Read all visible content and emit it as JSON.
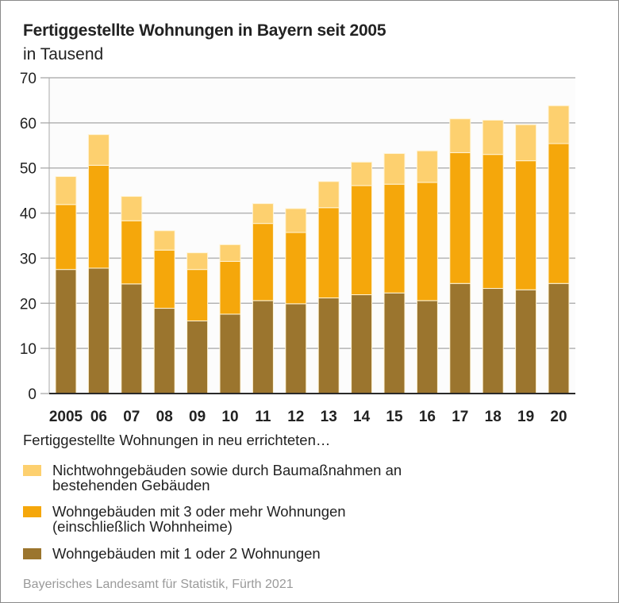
{
  "chart_data": {
    "type": "bar",
    "stacked": true,
    "title": "Fertiggestellte Wohnungen in Bayern seit 2005",
    "subtitle": "in Tausend",
    "xlabel": "",
    "ylabel": "",
    "ylim": [
      0,
      70
    ],
    "yticks": [
      "0",
      "10",
      "20",
      "30",
      "40",
      "50",
      "60",
      "70"
    ],
    "grid": true,
    "categories": [
      "2005",
      "06",
      "07",
      "08",
      "09",
      "10",
      "11",
      "12",
      "13",
      "14",
      "15",
      "16",
      "17",
      "18",
      "19",
      "20"
    ],
    "series": [
      {
        "name": "Wohngebäuden mit 1 oder 2 Wohnungen",
        "color": "#9B752E",
        "values": [
          27.5,
          27.8,
          24.3,
          18.9,
          16.1,
          17.6,
          20.6,
          19.9,
          21.2,
          21.9,
          22.3,
          20.6,
          24.4,
          23.3,
          23.0,
          24.4
        ]
      },
      {
        "name": "Wohngebäuden mit 3 oder mehr Wohnungen (einschließlich Wohnheime)",
        "color": "#F5A70B",
        "values": [
          14.4,
          22.8,
          14.0,
          12.9,
          11.4,
          11.7,
          17.1,
          15.8,
          20.0,
          24.2,
          24.1,
          26.2,
          29.0,
          29.7,
          28.6,
          31.0
        ]
      },
      {
        "name": "Nichtwohngebäuden sowie durch Baumaßnahmen an bestehenden Gebäuden",
        "color": "#FDD06F",
        "values": [
          6.2,
          6.8,
          5.4,
          4.3,
          3.7,
          3.7,
          4.4,
          5.3,
          5.8,
          5.2,
          6.8,
          7.0,
          7.5,
          7.6,
          8.0,
          8.4
        ]
      }
    ],
    "legend": {
      "title": "Fertiggestellte Wohnungen in neu errichteten…",
      "placement": "bottom",
      "items": [
        {
          "lines": [
            "Nichtwohngebäuden sowie durch Baumaßnahmen an",
            "bestehenden Gebäuden"
          ],
          "color": "#FDD06F"
        },
        {
          "lines": [
            "Wohngebäuden mit 3 oder mehr Wohnungen",
            "(einschließlich Wohnheime)"
          ],
          "color": "#F5A70B"
        },
        {
          "lines": [
            "Wohngebäuden mit 1 oder 2 Wohnungen"
          ],
          "color": "#9B752E"
        }
      ]
    },
    "source": "Bayerisches Landesamt für Statistik, Fürth 2021"
  }
}
